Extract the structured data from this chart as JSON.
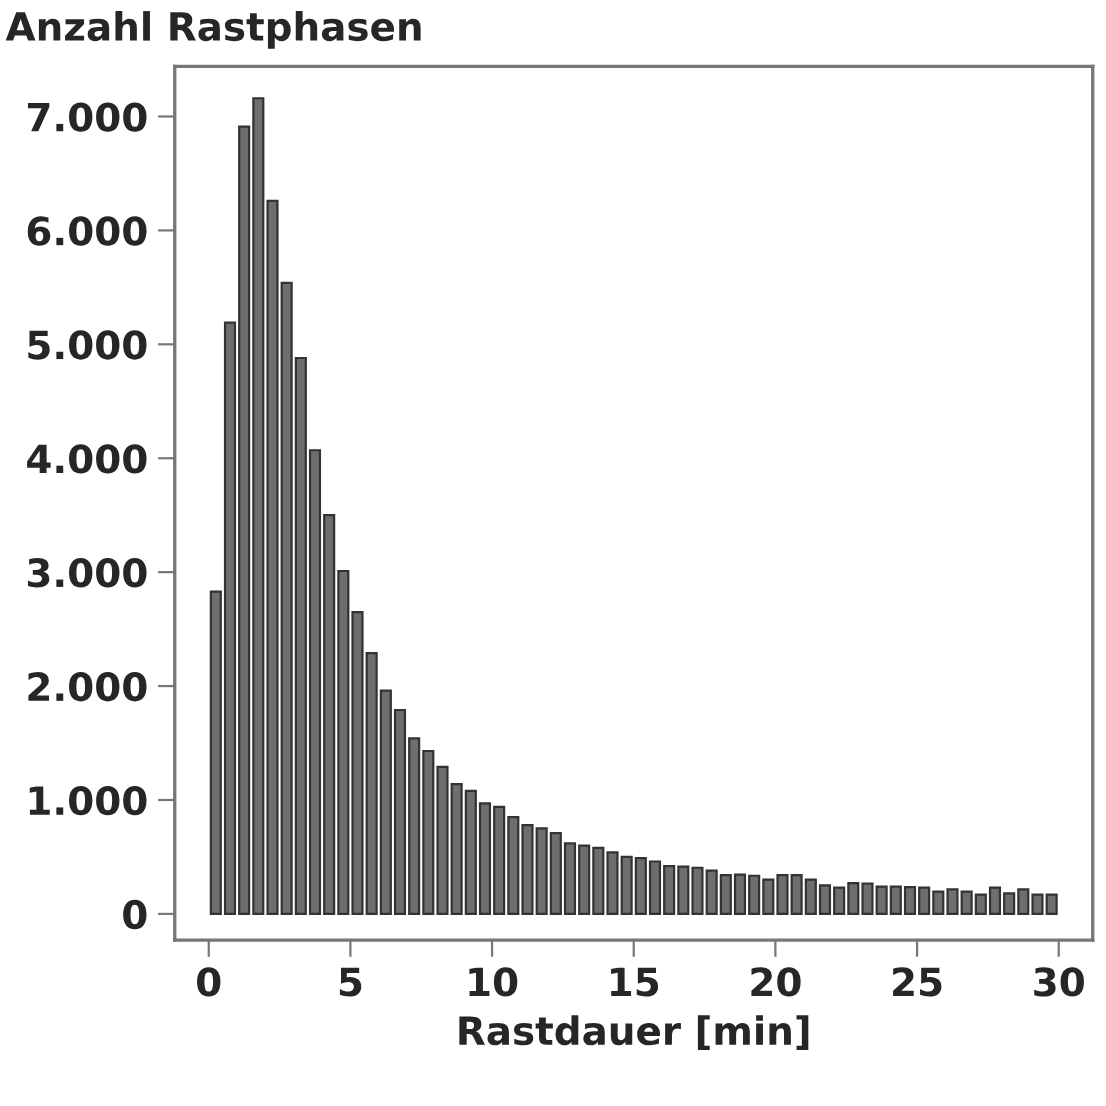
{
  "chart_data": {
    "type": "histogram",
    "title": "Anzahl Rastphasen",
    "xlabel": "Rastdauer [min]",
    "bins": [
      0,
      0.5,
      1,
      1.5,
      2,
      2.5,
      3,
      3.5,
      4,
      4.5,
      5,
      5.5,
      6,
      6.5,
      7,
      7.5,
      8,
      8.5,
      9,
      9.5,
      10,
      10.5,
      11,
      11.5,
      12,
      12.5,
      13,
      13.5,
      14,
      14.5,
      15,
      15.5,
      16,
      16.5,
      17,
      17.5,
      18,
      18.5,
      19,
      19.5,
      20,
      20.5,
      21,
      21.5,
      22,
      22.5,
      23,
      23.5,
      24,
      24.5,
      25,
      25.5,
      26,
      26.5,
      27,
      27.5,
      28,
      28.5,
      29,
      29.5,
      30
    ],
    "values": [
      2830,
      5190,
      6910,
      7160,
      6260,
      5540,
      4880,
      4070,
      3500,
      3010,
      2650,
      2290,
      1960,
      1790,
      1540,
      1430,
      1290,
      1140,
      1080,
      970,
      940,
      850,
      780,
      750,
      710,
      620,
      600,
      580,
      540,
      500,
      490,
      460,
      420,
      415,
      405,
      380,
      340,
      345,
      335,
      300,
      340,
      340,
      300,
      250,
      230,
      270,
      265,
      240,
      240,
      235,
      230,
      195,
      215,
      195,
      170,
      230,
      180,
      215,
      170,
      170
    ],
    "color": "#6e6e6e",
    "xlim": [
      -1.2,
      31.2
    ],
    "xticks": [
      0,
      5,
      10,
      15,
      20,
      25,
      30
    ],
    "ylim": [
      -230,
      7440
    ],
    "yticks": [
      {
        "value": 0,
        "label": "0"
      },
      {
        "value": 1000,
        "label": "1.000"
      },
      {
        "value": 2000,
        "label": "2.000"
      },
      {
        "value": 3000,
        "label": "3.000"
      },
      {
        "value": 4000,
        "label": "4.000"
      },
      {
        "value": 5000,
        "label": "5.000"
      },
      {
        "value": 6000,
        "label": "6.000"
      },
      {
        "value": 7000,
        "label": "7.000"
      }
    ],
    "grid": false
  }
}
